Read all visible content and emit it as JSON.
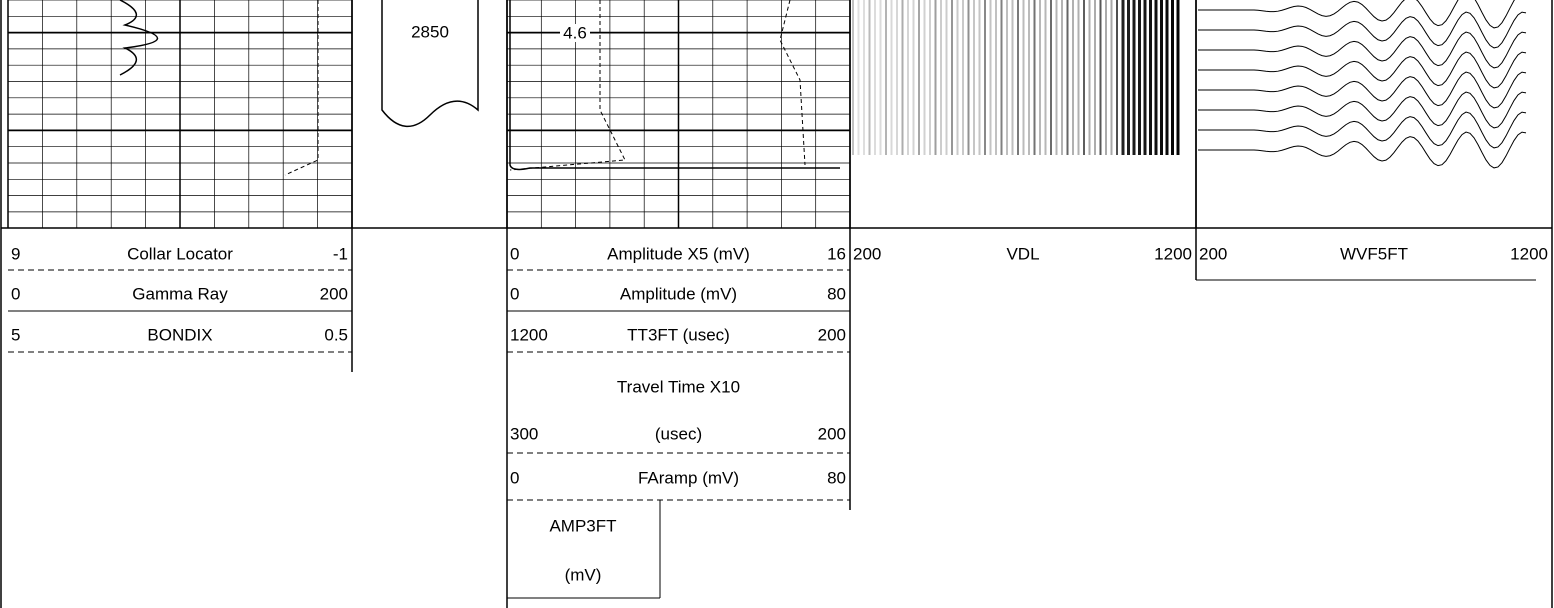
{
  "depth_label": "2850",
  "annotation": "4.6",
  "tracks": [
    {
      "curves": [
        {
          "left": "9",
          "name": "Collar Locator",
          "right": "-1"
        },
        {
          "left": "0",
          "name": "Gamma Ray",
          "right": "200"
        },
        {
          "left": "5",
          "name": "BONDIX",
          "right": "0.5"
        }
      ]
    },
    {
      "curves": [
        {
          "left": "0",
          "name": "Amplitude X5 (mV)",
          "right": "16"
        },
        {
          "left": "0",
          "name": "Amplitude (mV)",
          "right": "80"
        },
        {
          "left": "1200",
          "name": "TT3FT (usec)",
          "right": "200"
        },
        {
          "left": "300",
          "name": [
            "Travel Time X10",
            "(usec)"
          ],
          "right": "200"
        },
        {
          "left": "0",
          "name": "FAramp (mV)",
          "right": "80"
        },
        {
          "name": [
            "AMP3FT",
            "(mV)"
          ]
        }
      ]
    },
    {
      "curves": [
        {
          "left": "200",
          "name": "VDL",
          "right": "1200"
        }
      ]
    },
    {
      "curves": [
        {
          "left": "200",
          "name": "WVF5FT",
          "right": "1200"
        }
      ]
    }
  ]
}
